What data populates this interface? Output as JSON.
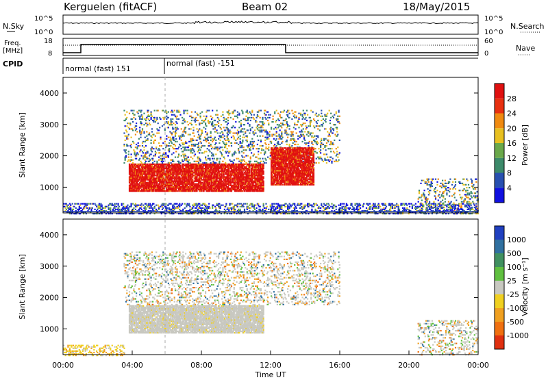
{
  "header": {
    "station": "Kerguelen (fitACF)",
    "beam": "Beam 02",
    "date": "18/May/2015"
  },
  "noise_panel": {
    "left_label": "N.Sky",
    "right_label": "N.Search",
    "left_ticks": [
      "10^5",
      "10^0"
    ],
    "right_ticks": [
      "10^5",
      "10^0"
    ]
  },
  "freq_panel": {
    "left_label_1": "Freq.",
    "left_label_2": "[MHz]",
    "left_ticks": [
      "18",
      "8"
    ],
    "right_label": "Nave",
    "right_ticks": [
      "60",
      "0"
    ]
  },
  "cpid_panel": {
    "label": "CPID",
    "segments": [
      "normal (fast) 151",
      "normal (fast) -151"
    ]
  },
  "axes": {
    "ylabel": "Slant Range [km]",
    "xlabel": "Time UT",
    "yticks": [
      "1000",
      "2000",
      "3000",
      "4000"
    ],
    "xticks": [
      "00:00",
      "04:00",
      "08:00",
      "12:00",
      "16:00",
      "20:00",
      "00:00"
    ]
  },
  "power_scale": {
    "label": "Power [dB]",
    "ticks": [
      "4",
      "8",
      "12",
      "16",
      "20",
      "24",
      "28"
    ],
    "colors": [
      "#1010e0",
      "#2850b0",
      "#3c8a6a",
      "#6aa84a",
      "#e8c020",
      "#f08a10",
      "#e83010",
      "#e01010"
    ]
  },
  "velocity_scale": {
    "label": "Velocity [m s⁻¹]",
    "ticks": [
      "1000",
      "500",
      "100",
      "25",
      "-25",
      "-100",
      "-500",
      "-1000"
    ],
    "colors": [
      "#2040c0",
      "#3070a0",
      "#409060",
      "#60c040",
      "#c8c8c0",
      "#f0d020",
      "#f0a020",
      "#f07010",
      "#e03010"
    ]
  },
  "chart_data": [
    {
      "type": "heatmap",
      "name": "power",
      "x_range_hours": [
        0,
        24
      ],
      "y_range_km": [
        180,
        4500
      ],
      "regions": [
        {
          "t0": 3.8,
          "t1": 11.6,
          "r0": 900,
          "r1": 1800,
          "level": "high"
        },
        {
          "t0": 3.5,
          "t1": 16.0,
          "r0": 1800,
          "r1": 3500,
          "level": "mid"
        },
        {
          "t0": 12.0,
          "t1": 14.5,
          "r0": 1100,
          "r1": 2300,
          "level": "high"
        },
        {
          "t0": 20.5,
          "t1": 24.0,
          "r0": 200,
          "r1": 1300,
          "level": "mid"
        },
        {
          "t0": 0.0,
          "t1": 24.0,
          "r0": 180,
          "r1": 500,
          "level": "low"
        }
      ]
    },
    {
      "type": "heatmap",
      "name": "velocity",
      "x_range_hours": [
        0,
        24
      ],
      "y_range_km": [
        180,
        4500
      ],
      "regions": [
        {
          "t0": 3.8,
          "t1": 11.6,
          "r0": 900,
          "r1": 1800,
          "level": "ground"
        },
        {
          "t0": 3.5,
          "t1": 16.0,
          "r0": 1800,
          "r1": 3500,
          "level": "mixed"
        },
        {
          "t0": 20.5,
          "t1": 24.0,
          "r0": 200,
          "r1": 1300,
          "level": "mixed"
        },
        {
          "t0": 0.0,
          "t1": 3.5,
          "r0": 180,
          "r1": 500,
          "level": "slow"
        }
      ]
    }
  ]
}
